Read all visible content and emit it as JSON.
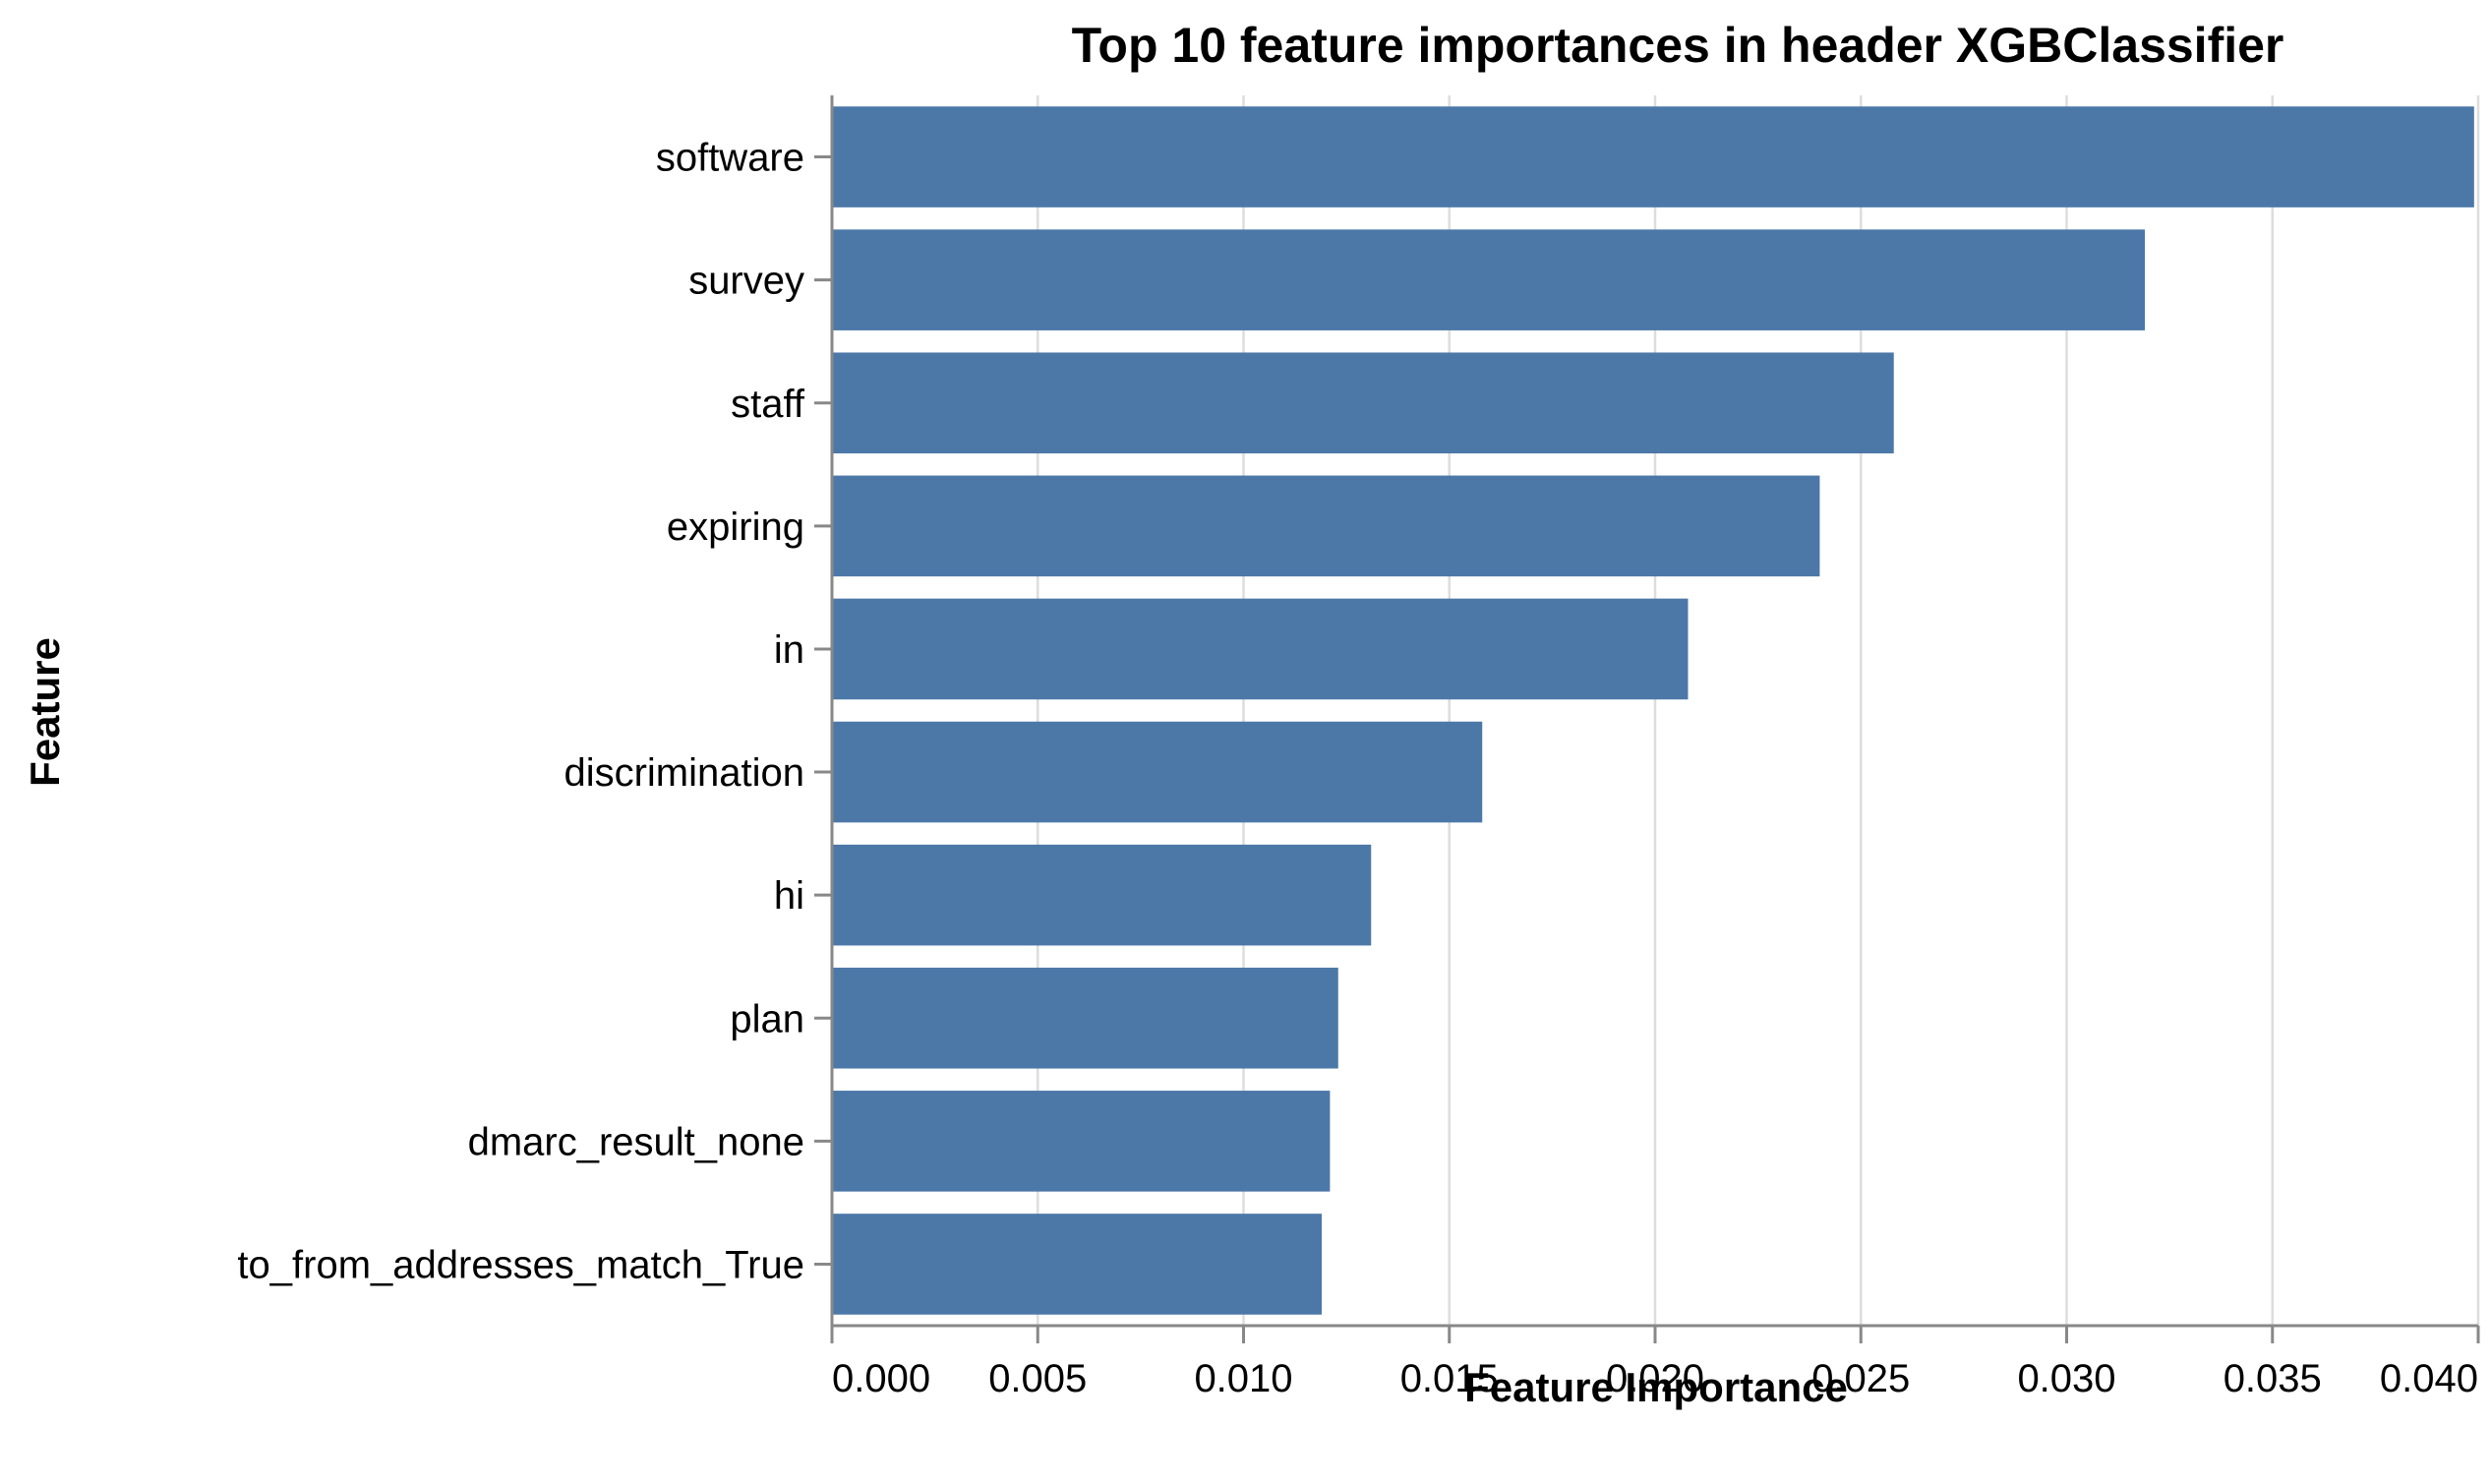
{
  "chart_data": {
    "type": "bar",
    "orientation": "horizontal",
    "title": "Top 10 feature importances in header XGBClassifier",
    "xlabel": "Feature Importance",
    "ylabel": "Feature",
    "xlim": [
      0,
      0.04
    ],
    "x_ticks": [
      "0.000",
      "0.005",
      "0.010",
      "0.015",
      "0.020",
      "0.025",
      "0.030",
      "0.035",
      "0.040"
    ],
    "x_tick_values": [
      0,
      0.005,
      0.01,
      0.015,
      0.02,
      0.025,
      0.03,
      0.035,
      0.04
    ],
    "grid": true,
    "bar_color": "#4c78a8",
    "categories": [
      "software",
      "survey",
      "staff",
      "expiring",
      "in",
      "discrimination",
      "hi",
      "plan",
      "dmarc_result_none",
      "to_from_addresses_match_True"
    ],
    "values": [
      0.0399,
      0.0319,
      0.0258,
      0.024,
      0.0208,
      0.0158,
      0.0131,
      0.0123,
      0.0121,
      0.0119
    ]
  }
}
